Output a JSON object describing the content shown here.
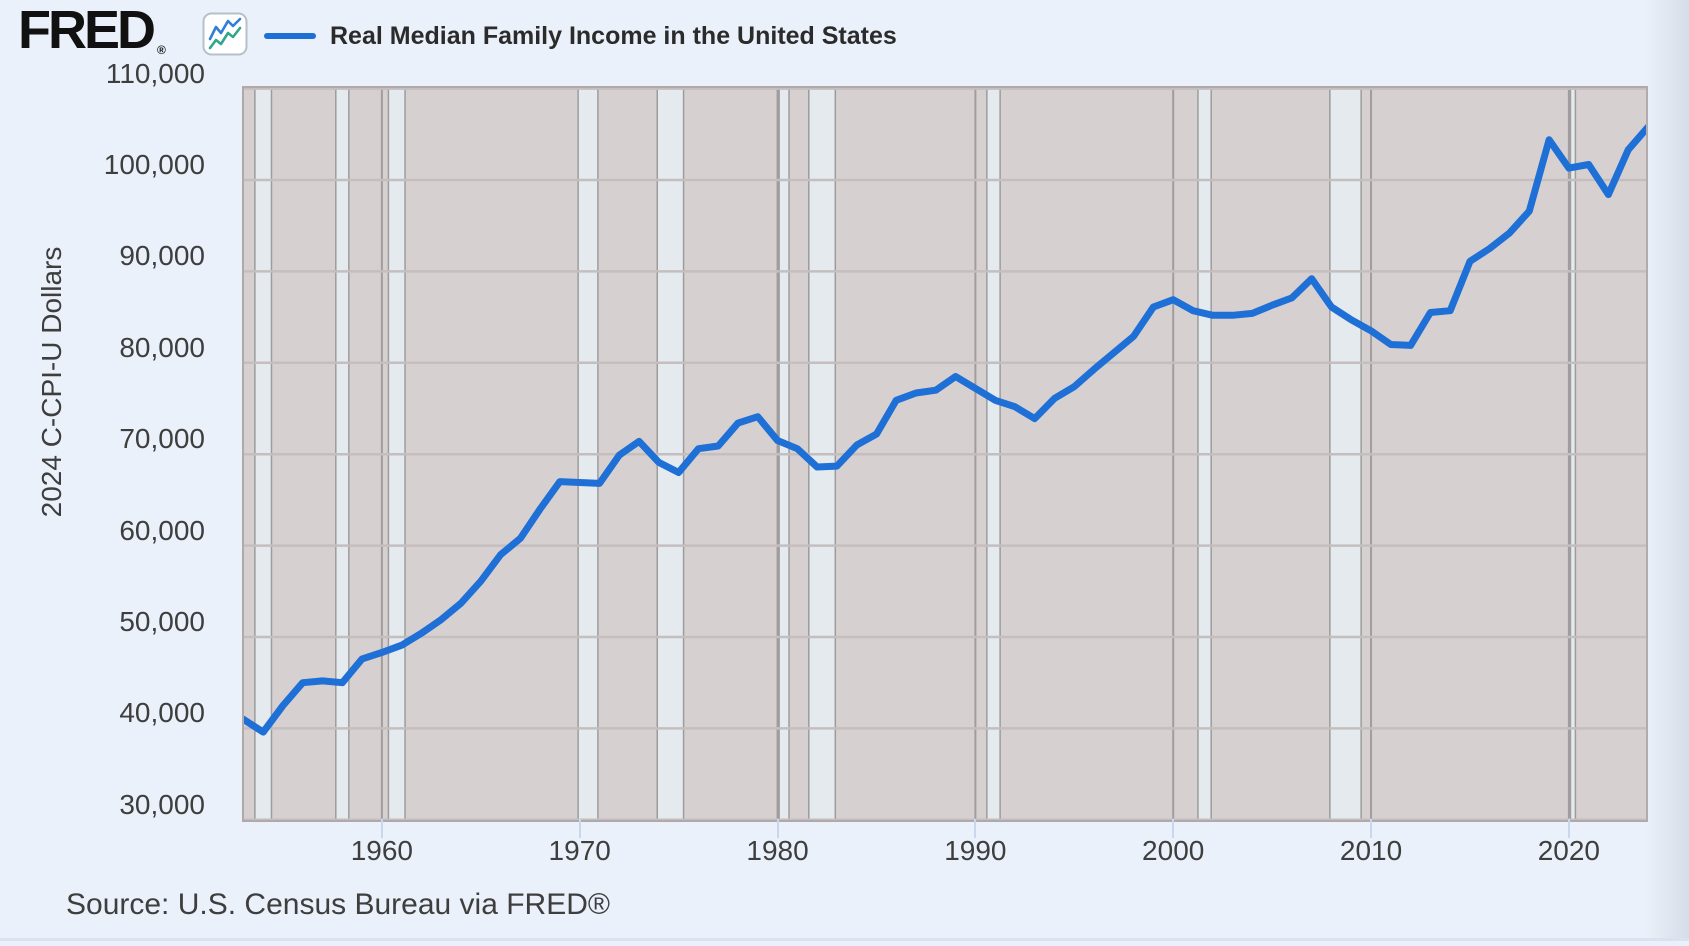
{
  "header": {
    "logo_text": "FRED",
    "registered_mark": "®",
    "legend_label": "Real Median Family Income in the United States"
  },
  "icons": {
    "fred_logo_chart": "line-chart-zigzag"
  },
  "y_axis": {
    "title": "2024 C-CPI-U Dollars",
    "tick_labels": [
      "110,000",
      "100,000",
      "90,000",
      "80,000",
      "70,000",
      "60,000",
      "50,000",
      "40,000",
      "30,000"
    ],
    "tick_values": [
      110000,
      100000,
      90000,
      80000,
      70000,
      60000,
      50000,
      40000,
      30000
    ]
  },
  "x_axis": {
    "tick_labels": [
      "1960",
      "1970",
      "1980",
      "1990",
      "2000",
      "2010",
      "2020"
    ],
    "tick_values": [
      1960,
      1970,
      1980,
      1990,
      2000,
      2010,
      2020
    ]
  },
  "source_line": "Source: U.S. Census Bureau via FRED®",
  "colors": {
    "page_background": "#eaf1fa",
    "plot_background": "#d7d0d0",
    "recession_band_fill": "#e4eaee",
    "recession_band_edge": "#9c9c9c",
    "h_gridline": "#c4bebe",
    "v_gridline": "#a39c9c",
    "plot_border": "#b0a9a9",
    "line": "#1e70d6",
    "tick_mark": "#c8d7eb",
    "text": "#3e3e3e"
  },
  "chart_data": {
    "type": "line",
    "title": "Real Median Family Income in the United States",
    "xlabel": "",
    "ylabel": "2024 C-CPI-U Dollars",
    "x_range_years": [
      1953,
      2024
    ],
    "ylim": [
      30000,
      110000
    ],
    "grid": true,
    "legend_position": "top-left",
    "series": [
      {
        "name": "Real Median Family Income in the United States",
        "color": "#1e70d6",
        "x": [
          1953,
          1954,
          1955,
          1956,
          1957,
          1958,
          1959,
          1960,
          1961,
          1962,
          1963,
          1964,
          1965,
          1966,
          1967,
          1968,
          1969,
          1970,
          1971,
          1972,
          1973,
          1974,
          1975,
          1976,
          1977,
          1978,
          1979,
          1980,
          1981,
          1982,
          1983,
          1984,
          1985,
          1986,
          1987,
          1988,
          1989,
          1990,
          1991,
          1992,
          1993,
          1994,
          1995,
          1996,
          1997,
          1998,
          1999,
          2000,
          2001,
          2002,
          2003,
          2004,
          2005,
          2006,
          2007,
          2008,
          2009,
          2010,
          2011,
          2012,
          2013,
          2014,
          2015,
          2016,
          2017,
          2018,
          2019,
          2020,
          2021,
          2022,
          2023,
          2024
        ],
        "values": [
          41000,
          39600,
          42500,
          45000,
          45200,
          45000,
          47600,
          48300,
          49100,
          50400,
          51900,
          53700,
          56100,
          59000,
          60800,
          64000,
          67000,
          66900,
          66800,
          69900,
          71400,
          69100,
          68000,
          70600,
          70900,
          73400,
          74100,
          71500,
          70600,
          68600,
          68700,
          71000,
          72200,
          75900,
          76700,
          77000,
          78500,
          77200,
          75900,
          75200,
          73900,
          76100,
          77400,
          79300,
          81100,
          82900,
          86100,
          86900,
          85700,
          85200,
          85200,
          85400,
          86300,
          87100,
          89200,
          86100,
          84700,
          83500,
          82000,
          81900,
          85500,
          85700,
          91100,
          92500,
          94200,
          96600,
          104400,
          101300,
          101700,
          98400,
          103300,
          105800
        ]
      }
    ],
    "recession_bands": [
      [
        1953.58,
        1954.42
      ],
      [
        1957.67,
        1958.33
      ],
      [
        1960.33,
        1961.17
      ],
      [
        1969.92,
        1970.92
      ],
      [
        1973.92,
        1975.25
      ],
      [
        1980.08,
        1980.58
      ],
      [
        1981.58,
        1982.92
      ],
      [
        1990.58,
        1991.25
      ],
      [
        2001.25,
        2001.92
      ],
      [
        2007.92,
        2009.5
      ],
      [
        2020.08,
        2020.33
      ]
    ]
  }
}
